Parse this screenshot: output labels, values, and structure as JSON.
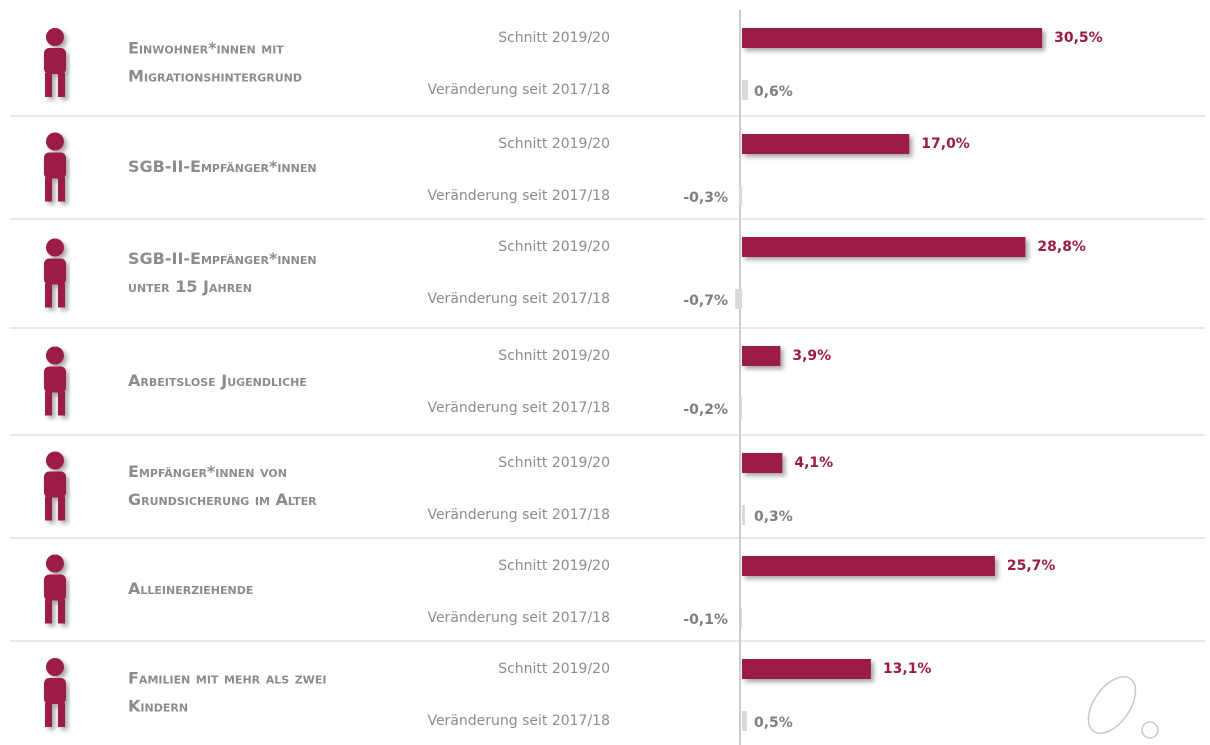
{
  "chart_data": {
    "type": "bar",
    "categories": [
      [
        "Einwohner*innen mit",
        "Migrationshintergrund"
      ],
      [
        "SGB-II-Empfänger*innen"
      ],
      [
        "SGB-II-Empfänger*innen",
        "unter 15 Jahren"
      ],
      [
        "Arbeitslose Jugendliche"
      ],
      [
        "Empfänger*innen von",
        "Grundsicherung im Alter"
      ],
      [
        "Alleinerziehende"
      ],
      [
        "Familien mit mehr als zwei",
        "Kindern"
      ]
    ],
    "series": [
      {
        "name": "Schnitt 2019/20",
        "color": "#9b1b45",
        "values": [
          30.5,
          17.0,
          28.8,
          3.9,
          4.1,
          25.7,
          13.1
        ],
        "value_labels": [
          "30,5%",
          "17,0%",
          "28,8%",
          "3,9%",
          "4,1%",
          "25,7%",
          "13,1%"
        ]
      },
      {
        "name": "Veränderung seit 2017/18",
        "color": "#d9d9d9",
        "values": [
          0.6,
          -0.3,
          -0.7,
          -0.2,
          0.3,
          -0.1,
          0.5
        ],
        "value_labels": [
          "0,6%",
          "-0,3%",
          "-0,7%",
          "-0,2%",
          "0,3%",
          "-0,1%",
          "0,5%"
        ]
      }
    ]
  }
}
